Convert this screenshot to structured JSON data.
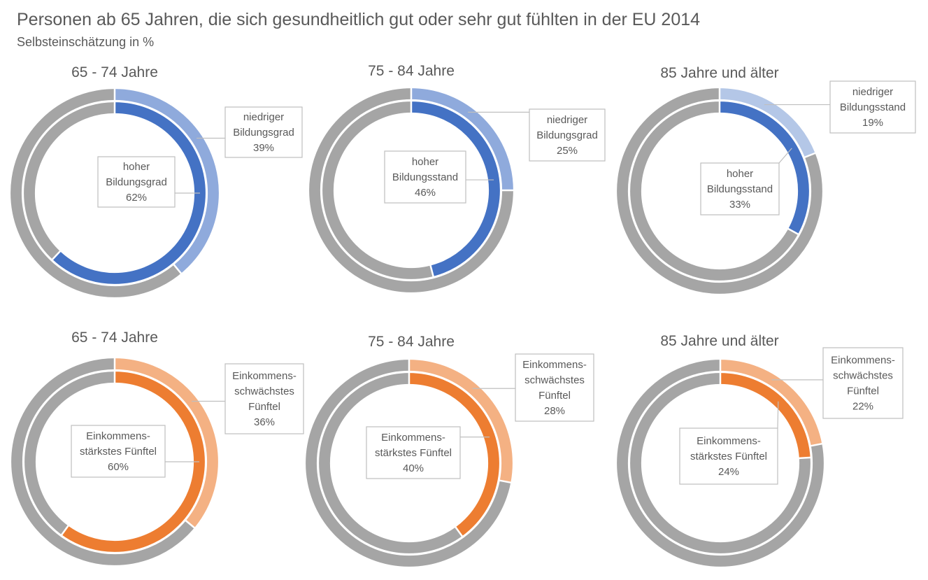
{
  "title": "Personen ab 65 Jahren, die sich gesundheitlich gut oder sehr gut fühlten in der EU 2014",
  "subtitle": "Selbsteinschätzung in %",
  "colors": {
    "track": "#A5A5A5",
    "blue_inner": "#4472C4",
    "blue_outer": "#8FAADC",
    "blue_outer_light": "#B4C7E7",
    "orange_inner": "#ED7D31",
    "orange_outer": "#F4B183",
    "label_text": "#595959",
    "label_border": "#BFBFBF"
  },
  "chart_data": [
    {
      "type": "donut",
      "title": "65 - 74 Jahre",
      "palette": "blue",
      "series": [
        {
          "name": "hoher Bildungsgrad",
          "ring": "inner",
          "value": 62,
          "label_lines": [
            "hoher",
            "Bildungsgrad",
            "62%"
          ]
        },
        {
          "name": "niedriger Bildungsgrad",
          "ring": "outer",
          "value": 39,
          "label_lines": [
            "niedriger",
            "Bildungsgrad",
            "39%"
          ]
        }
      ]
    },
    {
      "type": "donut",
      "title": "75 - 84 Jahre",
      "palette": "blue",
      "series": [
        {
          "name": "hoher Bildungsstand",
          "ring": "inner",
          "value": 46,
          "label_lines": [
            "hoher",
            "Bildungsstand",
            "46%"
          ]
        },
        {
          "name": "niedriger Bildungsgrad",
          "ring": "outer",
          "value": 25,
          "label_lines": [
            "niedriger",
            "Bildungsgrad",
            "25%"
          ]
        }
      ]
    },
    {
      "type": "donut",
      "title": "85 Jahre und älter",
      "palette": "blue_light",
      "series": [
        {
          "name": "hoher Bildungsstand",
          "ring": "inner",
          "value": 33,
          "label_lines": [
            "hoher",
            "Bildungsstand",
            "33%"
          ]
        },
        {
          "name": "niedriger Bildungsstand",
          "ring": "outer",
          "value": 19,
          "label_lines": [
            "niedriger",
            "Bildungsstand",
            "19%"
          ]
        }
      ]
    },
    {
      "type": "donut",
      "title": "65 - 74 Jahre",
      "palette": "orange",
      "series": [
        {
          "name": "Einkommensstärkstes Fünftel",
          "ring": "inner",
          "value": 60,
          "label_lines": [
            "Einkommens-",
            "stärkstes Fünftel",
            "60%"
          ]
        },
        {
          "name": "Einkommensschwächstes Fünftel",
          "ring": "outer",
          "value": 36,
          "label_lines": [
            "Einkommens-",
            "schwächstes",
            "Fünftel",
            "36%"
          ]
        }
      ]
    },
    {
      "type": "donut",
      "title": "75 - 84 Jahre",
      "palette": "orange",
      "series": [
        {
          "name": "Einkommensstärkstes Fünftel",
          "ring": "inner",
          "value": 40,
          "label_lines": [
            "Einkommens-",
            "stärkstes Fünftel",
            "40%"
          ]
        },
        {
          "name": "Einkommensschwächstes Fünftel",
          "ring": "outer",
          "value": 28,
          "label_lines": [
            "Einkommens-",
            "schwächstes",
            "Fünftel",
            "28%"
          ]
        }
      ]
    },
    {
      "type": "donut",
      "title": "85 Jahre und älter",
      "palette": "orange",
      "series": [
        {
          "name": "Einkommensstärkstes Fünftel",
          "ring": "inner",
          "value": 24,
          "label_lines": [
            "Einkommens-",
            "stärkstes Fünftel",
            "24%"
          ]
        },
        {
          "name": "Einkommensschwächstes Fünftel",
          "ring": "outer",
          "value": 22,
          "label_lines": [
            "Einkommens-",
            "schwächstes",
            "Fünftel",
            "22%"
          ]
        }
      ]
    }
  ]
}
